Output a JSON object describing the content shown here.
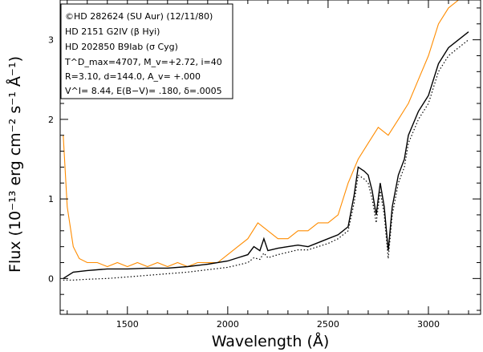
{
  "chart_data": {
    "type": "line",
    "xlabel": "Wavelength (Å)",
    "ylabel": "Flux (10⁻¹³ erg cm⁻² s⁻¹ Å⁻¹)",
    "xlim": [
      1165,
      3260
    ],
    "ylim": [
      -0.45,
      3.5
    ],
    "x_ticks": [
      1500,
      2000,
      2500,
      3000
    ],
    "x_tick_labels": [
      "1500",
      "2000",
      "2500",
      "3000"
    ],
    "y_ticks": [
      0,
      1,
      2,
      3
    ],
    "y_tick_labels": [
      "0",
      "1",
      "2",
      "3"
    ],
    "grid": false,
    "legend_position": "top-left",
    "legend": [
      "©HD 282624 (SU Aur) (12/11/80)",
      "HD 2151 G2IV (β Hyi)",
      "HD 202850 B9Iab (σ Cyg)",
      "T^D_max=4707, M_v=+2.72, i=40",
      "R=3.10, d=144.0, A_v= +.000",
      "V^I= 8.44, E(B−V)= .180, δ=.0005"
    ],
    "series": [
      {
        "style": "orange noisy line",
        "color": "#ff8c00",
        "x": [
          1180,
          1200,
          1230,
          1260,
          1300,
          1350,
          1400,
          1450,
          1500,
          1550,
          1600,
          1650,
          1700,
          1750,
          1800,
          1850,
          1900,
          1950,
          2000,
          2050,
          2100,
          2150,
          2200,
          2250,
          2300,
          2350,
          2400,
          2450,
          2500,
          2550,
          2600,
          2650,
          2700,
          2750,
          2800,
          2850,
          2900,
          2950,
          3000,
          3050,
          3100,
          3150,
          3200
        ],
        "values": [
          1.8,
          0.9,
          0.4,
          0.25,
          0.2,
          0.2,
          0.15,
          0.2,
          0.15,
          0.2,
          0.15,
          0.2,
          0.15,
          0.2,
          0.15,
          0.2,
          0.2,
          0.2,
          0.3,
          0.4,
          0.5,
          0.7,
          0.6,
          0.5,
          0.5,
          0.6,
          0.6,
          0.7,
          0.7,
          0.8,
          1.2,
          1.5,
          1.7,
          1.9,
          1.8,
          2.0,
          2.2,
          2.5,
          2.8,
          3.2,
          3.4,
          3.5,
          3.5
        ]
      },
      {
        "style": "black solid line",
        "color": "#000000",
        "x": [
          1180,
          1230,
          1300,
          1400,
          1500,
          1600,
          1700,
          1800,
          1900,
          2000,
          2050,
          2100,
          2130,
          2160,
          2180,
          2200,
          2250,
          2300,
          2350,
          2400,
          2450,
          2500,
          2550,
          2600,
          2630,
          2650,
          2680,
          2700,
          2720,
          2740,
          2760,
          2780,
          2800,
          2820,
          2850,
          2880,
          2900,
          2950,
          3000,
          3050,
          3100,
          3150,
          3200
        ],
        "values": [
          0.0,
          0.08,
          0.1,
          0.12,
          0.12,
          0.13,
          0.13,
          0.15,
          0.18,
          0.22,
          0.26,
          0.3,
          0.4,
          0.35,
          0.5,
          0.35,
          0.38,
          0.4,
          0.42,
          0.4,
          0.45,
          0.5,
          0.55,
          0.65,
          1.05,
          1.4,
          1.35,
          1.3,
          1.1,
          0.8,
          1.2,
          0.9,
          0.35,
          0.9,
          1.3,
          1.5,
          1.8,
          2.1,
          2.3,
          2.7,
          2.9,
          3.0,
          3.1
        ]
      },
      {
        "style": "black dotted line",
        "color": "#000000",
        "x": [
          1180,
          1230,
          1300,
          1400,
          1500,
          1600,
          1700,
          1800,
          1900,
          2000,
          2050,
          2100,
          2130,
          2160,
          2180,
          2200,
          2250,
          2300,
          2350,
          2400,
          2450,
          2500,
          2550,
          2600,
          2630,
          2650,
          2680,
          2700,
          2720,
          2740,
          2760,
          2780,
          2800,
          2820,
          2850,
          2880,
          2900,
          2950,
          3000,
          3050,
          3100,
          3150,
          3200
        ],
        "values": [
          -0.02,
          -0.02,
          -0.01,
          0.0,
          0.02,
          0.04,
          0.06,
          0.08,
          0.11,
          0.14,
          0.17,
          0.2,
          0.26,
          0.24,
          0.32,
          0.26,
          0.3,
          0.33,
          0.36,
          0.36,
          0.4,
          0.44,
          0.5,
          0.6,
          0.95,
          1.3,
          1.25,
          1.2,
          1.0,
          0.7,
          1.1,
          0.8,
          0.25,
          0.8,
          1.2,
          1.4,
          1.7,
          2.0,
          2.2,
          2.6,
          2.8,
          2.9,
          3.0
        ]
      }
    ]
  }
}
